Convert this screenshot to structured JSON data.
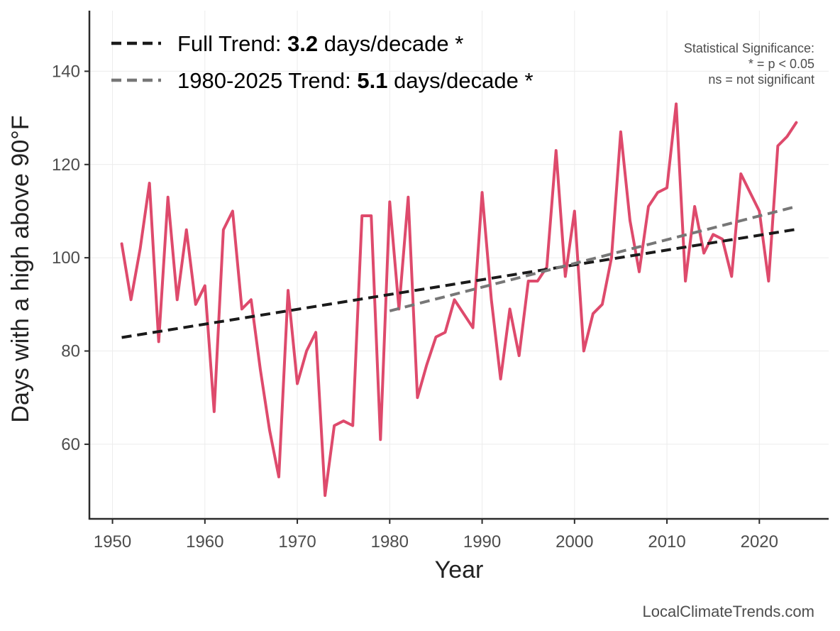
{
  "chart_data": {
    "type": "line",
    "xlabel": "Year",
    "ylabel": "Days with a high above 90°F",
    "xlim": [
      1947.5,
      2027.5
    ],
    "ylim": [
      44,
      153
    ],
    "x_ticks": [
      1950,
      1960,
      1970,
      1980,
      1990,
      2000,
      2010,
      2020
    ],
    "y_ticks": [
      60,
      80,
      100,
      120,
      140
    ],
    "grid": true,
    "series": [
      {
        "color": "#de4a6c",
        "points": [
          [
            1951,
            103
          ],
          [
            1952,
            91
          ],
          [
            1953,
            102
          ],
          [
            1954,
            116
          ],
          [
            1955,
            82
          ],
          [
            1956,
            113
          ],
          [
            1957,
            91
          ],
          [
            1958,
            106
          ],
          [
            1959,
            90
          ],
          [
            1960,
            94
          ],
          [
            1961,
            67
          ],
          [
            1962,
            106
          ],
          [
            1963,
            110
          ],
          [
            1964,
            89
          ],
          [
            1965,
            91
          ],
          [
            1966,
            76
          ],
          [
            1967,
            63
          ],
          [
            1968,
            53
          ],
          [
            1969,
            93
          ],
          [
            1970,
            73
          ],
          [
            1971,
            80
          ],
          [
            1972,
            84
          ],
          [
            1973,
            49
          ],
          [
            1974,
            64
          ],
          [
            1975,
            65
          ],
          [
            1976,
            64
          ],
          [
            1977,
            109
          ],
          [
            1978,
            109
          ],
          [
            1979,
            61
          ],
          [
            1980,
            112
          ],
          [
            1981,
            89
          ],
          [
            1982,
            113
          ],
          [
            1983,
            70
          ],
          [
            1984,
            77
          ],
          [
            1985,
            83
          ],
          [
            1986,
            84
          ],
          [
            1987,
            91
          ],
          [
            1989,
            85
          ],
          [
            1990,
            114
          ],
          [
            1991,
            91
          ],
          [
            1992,
            74
          ],
          [
            1993,
            89
          ],
          [
            1994,
            79
          ],
          [
            1995,
            95
          ],
          [
            1996,
            95
          ],
          [
            1997,
            98
          ],
          [
            1998,
            123
          ],
          [
            1999,
            96
          ],
          [
            2000,
            110
          ],
          [
            2001,
            80
          ],
          [
            2002,
            88
          ],
          [
            2003,
            90
          ],
          [
            2004,
            100
          ],
          [
            2005,
            127
          ],
          [
            2006,
            108
          ],
          [
            2007,
            97
          ],
          [
            2008,
            111
          ],
          [
            2009,
            114
          ],
          [
            2010,
            115
          ],
          [
            2011,
            133
          ],
          [
            2012,
            95
          ],
          [
            2013,
            111
          ],
          [
            2014,
            101
          ],
          [
            2015,
            105
          ],
          [
            2016,
            104
          ],
          [
            2017,
            96
          ],
          [
            2018,
            118
          ],
          [
            2020,
            110
          ],
          [
            2021,
            95
          ],
          [
            2022,
            124
          ],
          [
            2023,
            126
          ],
          [
            2024,
            129
          ]
        ]
      }
    ],
    "trend_lines": [
      {
        "name": "Full Trend",
        "color": "#1a1a1a",
        "x": [
          1951,
          2024
        ],
        "y": [
          82.9,
          106.1
        ]
      },
      {
        "name": "1980-2025 Trend",
        "color": "#777777",
        "x": [
          1980,
          2024
        ],
        "y": [
          88.6,
          111.0
        ]
      }
    ],
    "legend": {
      "placement": "top-left",
      "entries": [
        {
          "prefix": "Full Trend: ",
          "value": "3.2",
          "suffix": " days/decade *",
          "color": "#1a1a1a"
        },
        {
          "prefix": "1980-2025 Trend: ",
          "value": "5.1",
          "suffix": " days/decade *",
          "color": "#777777"
        }
      ]
    },
    "annotation": {
      "lines": [
        "Statistical Significance:",
        "* = p < 0.05",
        "ns = not significant"
      ],
      "placement": "top-right"
    }
  },
  "source": "LocalClimateTrends.com"
}
